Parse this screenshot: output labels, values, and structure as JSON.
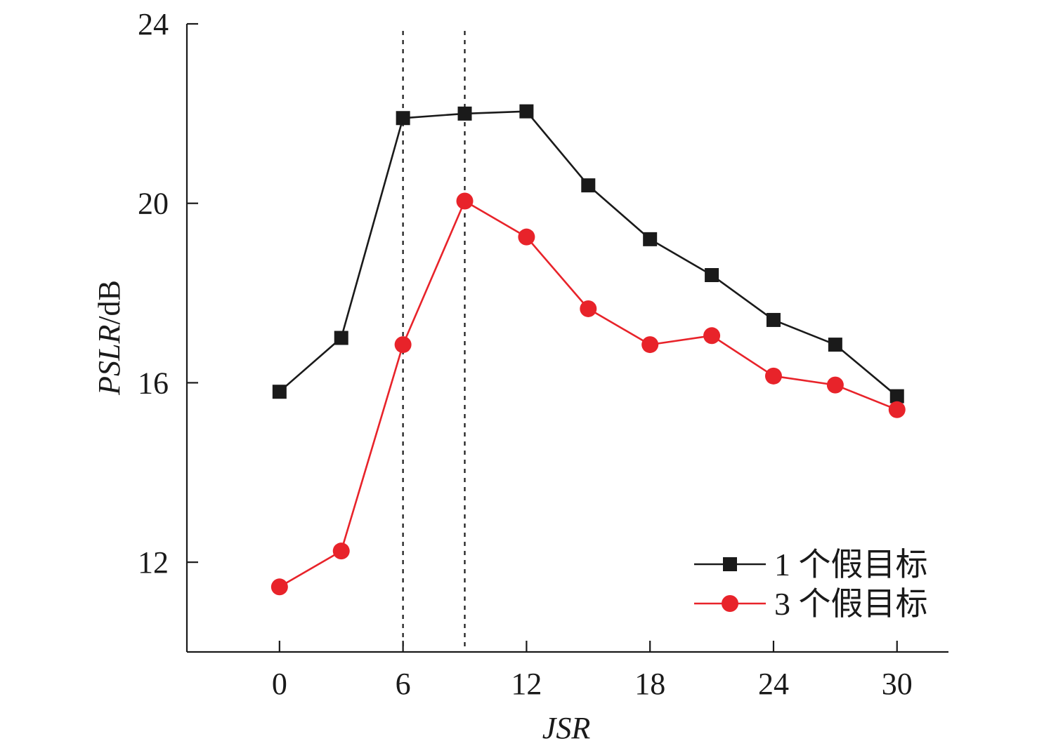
{
  "chart_data": {
    "type": "line",
    "xlabel": "JSR",
    "ylabel_italic": "PSLR",
    "ylabel_unit": "/dB",
    "xlim": [
      -4.5,
      32.5
    ],
    "ylim": [
      10,
      24
    ],
    "xticks": [
      0,
      6,
      12,
      18,
      24,
      30
    ],
    "yticks": [
      12,
      16,
      20,
      24
    ],
    "reference_lines_x": [
      6,
      9
    ],
    "x": [
      0,
      3,
      6,
      9,
      12,
      15,
      18,
      21,
      24,
      27,
      30
    ],
    "series": [
      {
        "name": "1 个假目标",
        "marker": "square",
        "color": "#1a1a1a",
        "values": [
          15.8,
          17.0,
          21.9,
          22.0,
          22.05,
          20.4,
          19.2,
          18.4,
          17.4,
          16.85,
          15.7
        ]
      },
      {
        "name": "3 个假目标",
        "marker": "circle",
        "color": "#e8232a",
        "values": [
          11.45,
          12.25,
          16.85,
          20.05,
          19.25,
          17.65,
          16.85,
          17.05,
          16.15,
          15.95,
          15.4
        ]
      }
    ],
    "legend": {
      "position": "bottom-right"
    }
  }
}
